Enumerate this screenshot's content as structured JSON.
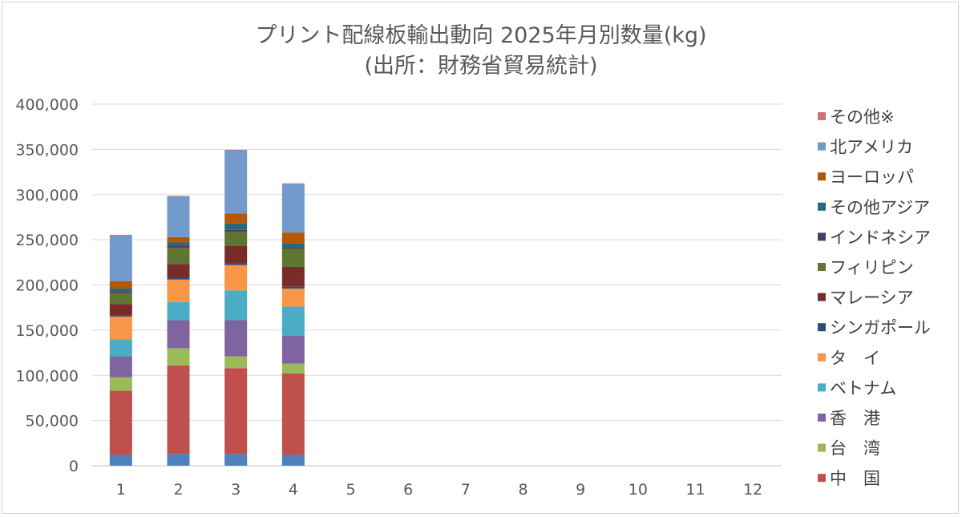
{
  "chart_data": {
    "type": "bar",
    "stacked": true,
    "title": "プリント配線板輸出動向 2025年月別数量(kg)",
    "subtitle": "(出所：財務省貿易統計)",
    "xlabel": "",
    "ylabel": "",
    "ylim": [
      0,
      400000
    ],
    "y_ticks": [
      "0",
      "50,000",
      "100,000",
      "150,000",
      "200,000",
      "250,000",
      "300,000",
      "350,000",
      "400,000"
    ],
    "categories": [
      "1",
      "2",
      "3",
      "4",
      "5",
      "6",
      "7",
      "8",
      "9",
      "10",
      "11",
      "12"
    ],
    "grid": true,
    "legend_position": "right",
    "series": [
      {
        "name": "",
        "color": "#4f81bd",
        "values": [
          12000,
          13000,
          13000,
          12000,
          null,
          null,
          null,
          null,
          null,
          null,
          null,
          null
        ]
      },
      {
        "name": "中　国",
        "color": "#c0504d",
        "values": [
          71000,
          98000,
          95000,
          90000,
          null,
          null,
          null,
          null,
          null,
          null,
          null,
          null
        ]
      },
      {
        "name": "台　湾",
        "color": "#9bbb59",
        "values": [
          15000,
          19000,
          13000,
          11000,
          null,
          null,
          null,
          null,
          null,
          null,
          null,
          null
        ]
      },
      {
        "name": "香　港",
        "color": "#8064a2",
        "values": [
          23000,
          31000,
          40000,
          31000,
          null,
          null,
          null,
          null,
          null,
          null,
          null,
          null
        ]
      },
      {
        "name": "ベトナム",
        "color": "#4bacc6",
        "values": [
          19000,
          20000,
          33000,
          32000,
          null,
          null,
          null,
          null,
          null,
          null,
          null,
          null
        ]
      },
      {
        "name": "タ　イ",
        "color": "#f79646",
        "values": [
          25000,
          25000,
          28000,
          20000,
          null,
          null,
          null,
          null,
          null,
          null,
          null,
          null
        ]
      },
      {
        "name": "シンガポール",
        "color": "#2c4d75",
        "values": [
          1000,
          2000,
          2000,
          2000,
          null,
          null,
          null,
          null,
          null,
          null,
          null,
          null
        ]
      },
      {
        "name": "マレーシア",
        "color": "#772c2a",
        "values": [
          13000,
          15000,
          19000,
          22000,
          null,
          null,
          null,
          null,
          null,
          null,
          null,
          null
        ]
      },
      {
        "name": "フィリピン",
        "color": "#5f7530",
        "values": [
          12000,
          18000,
          16000,
          20000,
          null,
          null,
          null,
          null,
          null,
          null,
          null,
          null
        ]
      },
      {
        "name": "インドネシア",
        "color": "#4d3b62",
        "values": [
          2000,
          2000,
          2000,
          2000,
          null,
          null,
          null,
          null,
          null,
          null,
          null,
          null
        ]
      },
      {
        "name": "その他アジア",
        "color": "#276a7c",
        "values": [
          3000,
          4000,
          7000,
          4000,
          null,
          null,
          null,
          null,
          null,
          null,
          null,
          null
        ]
      },
      {
        "name": "ヨーロッパ",
        "color": "#b65708",
        "values": [
          8000,
          6000,
          11000,
          12000,
          null,
          null,
          null,
          null,
          null,
          null,
          null,
          null
        ]
      },
      {
        "name": "北アメリカ",
        "color": "#729aca",
        "values": [
          51000,
          45000,
          70000,
          54000,
          null,
          null,
          null,
          null,
          null,
          null,
          null,
          null
        ]
      },
      {
        "name": "その他※",
        "color": "#cd7371",
        "values": [
          500,
          500,
          500,
          500,
          null,
          null,
          null,
          null,
          null,
          null,
          null,
          null
        ]
      }
    ]
  }
}
